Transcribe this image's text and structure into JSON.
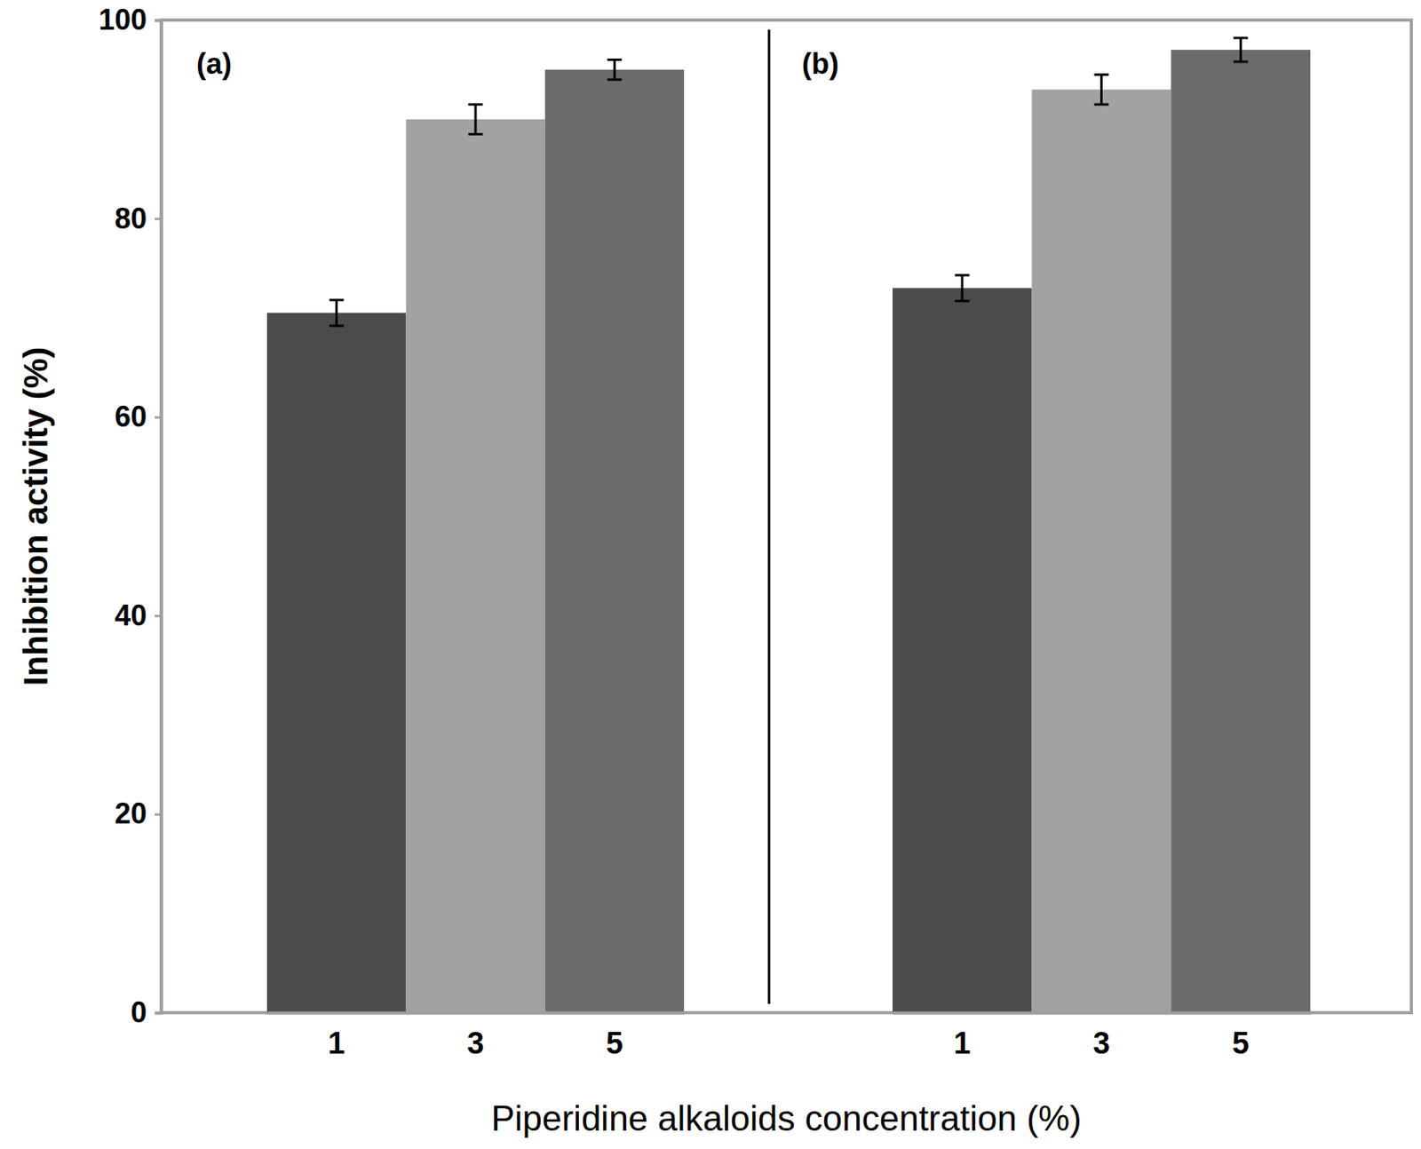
{
  "chart_data": {
    "type": "bar",
    "y_label": "Inhibition activity (%)",
    "x_label": "Piperidine alkaloids concentration (%)",
    "ylim": [
      0,
      100
    ],
    "yticks": [
      0,
      20,
      40,
      60,
      80,
      100
    ],
    "grid": false,
    "panels": [
      {
        "title": "(a)",
        "categories": [
          "1",
          "3",
          "5"
        ],
        "values": [
          70.5,
          90,
          95
        ],
        "errors": [
          1.3,
          1.5,
          1.0
        ],
        "colors": [
          "#4b4b4b",
          "#a2a2a2",
          "#6b6b6b"
        ]
      },
      {
        "title": "(b)",
        "categories": [
          "1",
          "3",
          "5"
        ],
        "values": [
          73,
          93,
          97
        ],
        "errors": [
          1.3,
          1.5,
          1.2
        ],
        "colors": [
          "#4b4b4b",
          "#a2a2a2",
          "#6b6b6b"
        ]
      }
    ]
  }
}
